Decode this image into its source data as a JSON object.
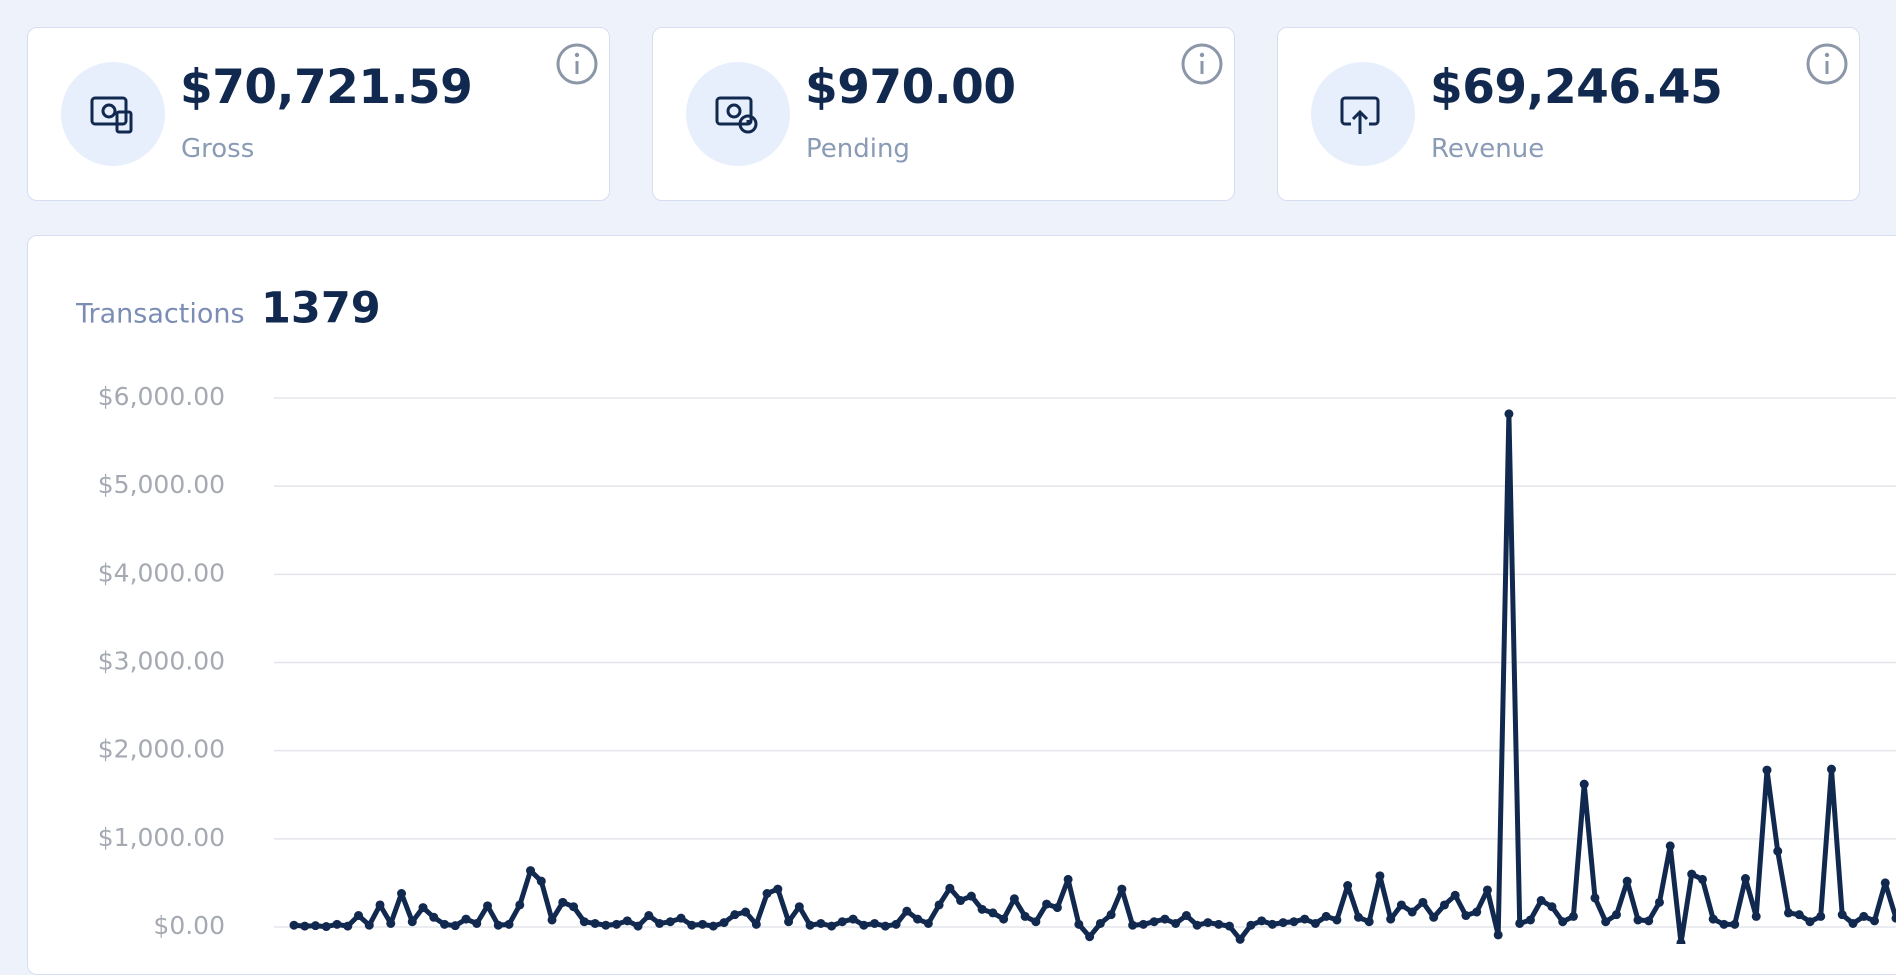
{
  "cards": [
    {
      "amount": "$70,721.59",
      "label": "Gross"
    },
    {
      "amount": "$970.00",
      "label": "Pending"
    },
    {
      "amount": "$69,246.45",
      "label": "Revenue"
    }
  ],
  "chart_data": {
    "type": "line",
    "label": "Transactions",
    "count": 1379,
    "color": "#12294f",
    "values": [
      20,
      10,
      15,
      5,
      30,
      10,
      130,
      20,
      250,
      40,
      380,
      60,
      220,
      110,
      30,
      15,
      90,
      40,
      240,
      20,
      30,
      250,
      640,
      520,
      80,
      280,
      230,
      60,
      40,
      20,
      30,
      70,
      10,
      130,
      40,
      60,
      100,
      20,
      30,
      10,
      50,
      140,
      170,
      30,
      380,
      430,
      60,
      230,
      20,
      40,
      10,
      60,
      90,
      20,
      40,
      10,
      30,
      180,
      90,
      40,
      250,
      440,
      300,
      350,
      200,
      160,
      90,
      320,
      120,
      60,
      260,
      220,
      540,
      30,
      -110,
      40,
      140,
      430,
      20,
      30,
      60,
      90,
      40,
      130,
      20,
      50,
      30,
      10,
      -140,
      20,
      70,
      30,
      50,
      60,
      90,
      40,
      120,
      80,
      470,
      110,
      60,
      580,
      90,
      250,
      170,
      280,
      110,
      250,
      360,
      130,
      170,
      420,
      -90,
      5820,
      40,
      80,
      300,
      230,
      60,
      120,
      1620,
      330,
      60,
      140,
      520,
      80,
      70,
      280,
      920,
      -180,
      600,
      540,
      90,
      30,
      30,
      550,
      120,
      1780,
      860,
      160,
      140,
      60,
      120,
      1790,
      140,
      40,
      120,
      70,
      500,
      100
    ],
    "ylim": [
      0,
      6000
    ],
    "yticks": [
      {
        "value": 0,
        "label": "$0.00"
      },
      {
        "value": 1000,
        "label": "$1,000.00"
      },
      {
        "value": 2000,
        "label": "$2,000.00"
      },
      {
        "value": 3000,
        "label": "$3,000.00"
      },
      {
        "value": 4000,
        "label": "$4,000.00"
      },
      {
        "value": 5000,
        "label": "$5,000.00"
      },
      {
        "value": 6000,
        "label": "$6,000.00"
      }
    ],
    "grid": true
  }
}
